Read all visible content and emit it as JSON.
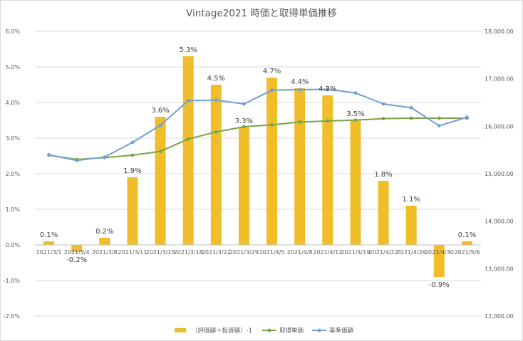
{
  "chart_data": {
    "type": "bar+line",
    "title": "Vintage2021 時価と取得単価推移",
    "categories": [
      "2021/3/1",
      "2021/3/4",
      "2021/3/8",
      "2021/3/11",
      "2021/3/15",
      "2021/3/18",
      "2021/3/22",
      "2021/3/29",
      "2021/4/5",
      "2021/4/8",
      "2021/4/12",
      "2021/4/19",
      "2021/4/22",
      "2021/4/26",
      "2021/4/30",
      "2021/5/6"
    ],
    "bar_series": {
      "name": "（評価額＋投資額）-1",
      "axis": "left",
      "color": "#F0BE2A",
      "values": [
        0.1,
        -0.2,
        0.2,
        1.9,
        3.6,
        5.3,
        4.5,
        3.3,
        4.7,
        4.4,
        4.2,
        3.5,
        1.8,
        1.1,
        -0.9,
        0.1
      ],
      "labels": [
        "0.1%",
        "-0.2%",
        "0.2%",
        "1.9%",
        "3.6%",
        "5.3%",
        "4.5%",
        "3.3%",
        "4.7%",
        "4.4%",
        "4.2%",
        "3.5%",
        "1.8%",
        "1.1%",
        "-0.9%",
        "0.1%"
      ]
    },
    "line_series": [
      {
        "name": "取得単価",
        "axis": "right",
        "color": "#77A448",
        "values": [
          15390,
          15300,
          15340,
          15390,
          15470,
          15730,
          15880,
          15990,
          16030,
          16090,
          16110,
          16130,
          16160,
          16170,
          16170,
          16170
        ]
      },
      {
        "name": "基準価額",
        "axis": "right",
        "color": "#6F9FD8",
        "values": [
          15400,
          15280,
          15350,
          15660,
          16020,
          16540,
          16550,
          16470,
          16760,
          16770,
          16780,
          16700,
          16470,
          16390,
          16010,
          16190
        ]
      }
    ],
    "y_left": {
      "min": -2.0,
      "max": 6.0,
      "step": 1.0,
      "ticks": [
        "-2.0%",
        "-1.0%",
        "0.0%",
        "1.0%",
        "2.0%",
        "3.0%",
        "4.0%",
        "5.0%",
        "6.0%"
      ]
    },
    "y_right": {
      "min": 12000,
      "max": 18000,
      "step": 1000,
      "ticks": [
        "12,000.00",
        "13,000.00",
        "14,000.00",
        "15,000.00",
        "16,000.00",
        "17,000.00",
        "18,000.00"
      ]
    },
    "grid": true,
    "legend_position": "bottom"
  }
}
